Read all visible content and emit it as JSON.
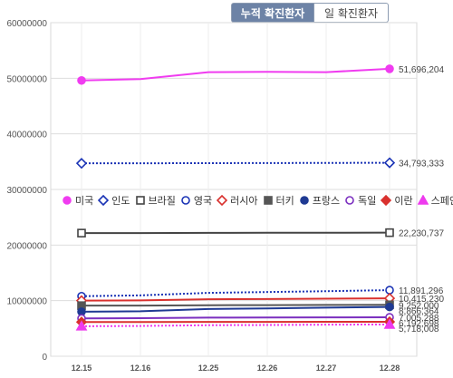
{
  "tabs": [
    {
      "label": "누적 확진환자",
      "active": true
    },
    {
      "label": "일 확진환자",
      "active": false
    }
  ],
  "chart_data": {
    "type": "line",
    "categories": [
      "12.15",
      "12.16",
      "12.25",
      "12.26",
      "12.27",
      "12.28"
    ],
    "ylim": [
      0,
      60000000
    ],
    "yticks": [
      "0",
      "10000000",
      "20000000",
      "30000000",
      "40000000",
      "50000000",
      "60000000"
    ],
    "grid": true,
    "legend_position": "middle",
    "series": [
      {
        "name": "미국",
        "color": "#f03cf0",
        "marker": "filled-circle",
        "dash": "solid",
        "values": [
          49600000,
          49850000,
          51100000,
          51150000,
          51100000,
          51696204
        ],
        "end_label": "51,696,204"
      },
      {
        "name": "인도",
        "color": "#1a33b5",
        "marker": "hollow-diamond",
        "dash": "dotted",
        "values": [
          34700000,
          34710000,
          34730000,
          34750000,
          34770000,
          34793333
        ],
        "end_label": "34,793,333"
      },
      {
        "name": "브라질",
        "color": "#444444",
        "marker": "hollow-square",
        "dash": "solid",
        "values": [
          22150000,
          22160000,
          22200000,
          22210000,
          22220000,
          22230737
        ],
        "end_label": "22,230,737"
      },
      {
        "name": "영국",
        "color": "#1a33b5",
        "marker": "hollow-circle",
        "dash": "dotted",
        "values": [
          10800000,
          10950000,
          11400000,
          11550000,
          11700000,
          11891296
        ],
        "end_label": "11,891,296"
      },
      {
        "name": "러시아",
        "color": "#d9312e",
        "marker": "hollow-diamond",
        "dash": "solid",
        "values": [
          10000000,
          10050000,
          10250000,
          10300000,
          10360000,
          10415230
        ],
        "end_label": "10,415,230"
      },
      {
        "name": "터키",
        "color": "#555555",
        "marker": "filled-square",
        "dash": "solid",
        "values": [
          9100000,
          9120000,
          9180000,
          9200000,
          9230000,
          9252000
        ],
        "end_label": "9,252,000"
      },
      {
        "name": "프랑스",
        "color": "#1f3a93",
        "marker": "filled-circle",
        "dash": "solid",
        "values": [
          8000000,
          8100000,
          8500000,
          8600000,
          8750000,
          8866364
        ],
        "end_label": "8,866,364"
      },
      {
        "name": "독일",
        "color": "#7b2fbf",
        "marker": "hollow-circle",
        "dash": "solid",
        "values": [
          6800000,
          6850000,
          6950000,
          6970000,
          6990000,
          7005288
        ],
        "end_label": "7,005,288"
      },
      {
        "name": "이란",
        "color": "#d9312e",
        "marker": "filled-diamond",
        "dash": "solid",
        "values": [
          6150000,
          6160000,
          6180000,
          6185000,
          6190000,
          6192698
        ],
        "end_label": "6,192,698"
      },
      {
        "name": "스페인",
        "color": "#ee3aee",
        "marker": "filled-triangle",
        "dash": "dotted",
        "values": [
          5400000,
          5450000,
          5580000,
          5620000,
          5680000,
          5718008
        ],
        "end_label": "5,718,008"
      }
    ]
  }
}
